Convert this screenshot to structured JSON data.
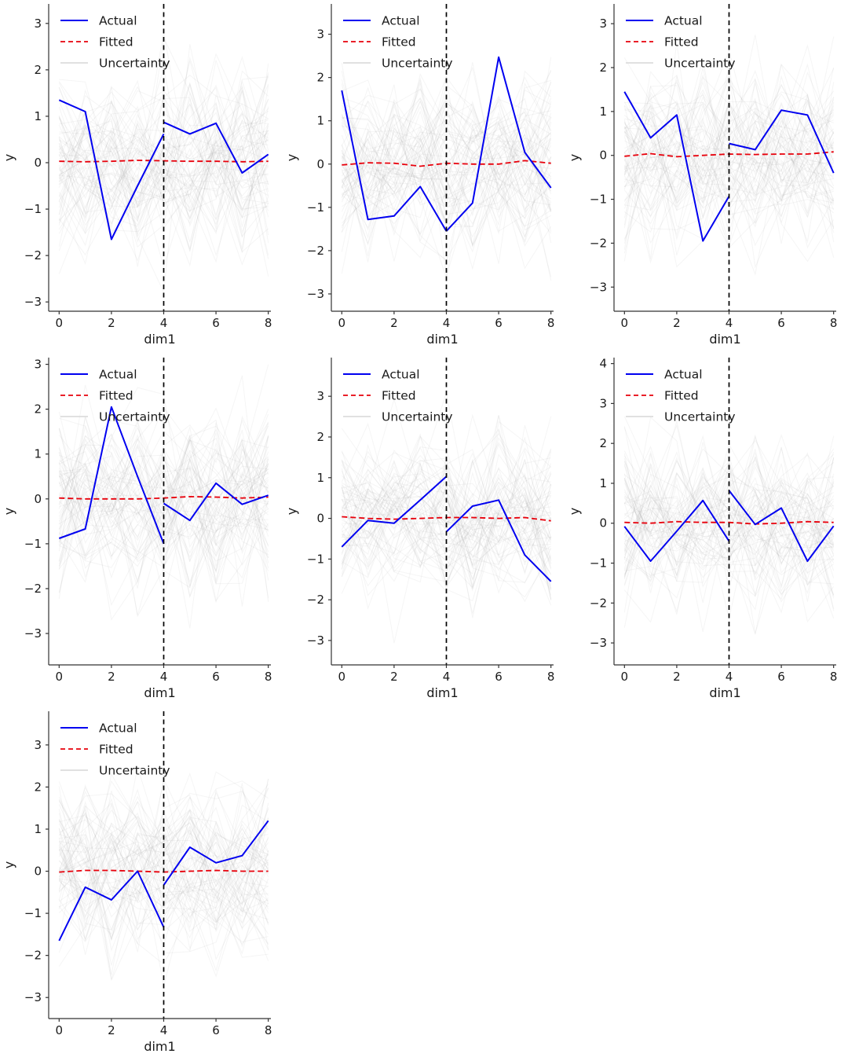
{
  "figure": {
    "xlabel": "dim1",
    "ylabel": "y",
    "legend": [
      {
        "label": "Actual",
        "style": "solid",
        "color_key": "actual"
      },
      {
        "label": "Fitted",
        "style": "dashed",
        "color_key": "fitted"
      },
      {
        "label": "Uncertainty",
        "style": "solid",
        "color_key": "uncertainty_legend"
      }
    ],
    "colors": {
      "actual": "#0000f0",
      "fitted": "#e8000b",
      "uncertainty": "#999999",
      "uncertainty_legend": "#d9d9d9",
      "vline": "#000000",
      "axis": "#333333",
      "text": "#1a1a1a"
    }
  },
  "chart_data": [
    {
      "id": 1,
      "type": "line",
      "xticks": [
        0,
        2,
        4,
        6,
        8
      ],
      "yticks": [
        3,
        2,
        1,
        0,
        -1,
        -2,
        -3
      ],
      "ylim": [
        -3.2,
        3.42
      ],
      "vline_x": 4,
      "actual_context": {
        "x": [
          0,
          1,
          2,
          3,
          4
        ],
        "y": [
          1.35,
          1.1,
          -1.65,
          -0.5,
          0.62
        ]
      },
      "actual_forecast": {
        "x": [
          4,
          5,
          6,
          7,
          8
        ],
        "y": [
          0.87,
          0.62,
          0.85,
          -0.22,
          0.18
        ]
      },
      "fitted": {
        "x": [
          0,
          1,
          2,
          3,
          4,
          5,
          6,
          7,
          8
        ],
        "y": [
          0.03,
          0.02,
          0.03,
          0.05,
          0.04,
          0.03,
          0.03,
          0.02,
          0.03
        ]
      },
      "uncertainty": {
        "n_lines": 70,
        "seed": 101
      }
    },
    {
      "id": 2,
      "type": "line",
      "xticks": [
        0,
        2,
        4,
        6,
        8
      ],
      "yticks": [
        3,
        2,
        1,
        0,
        -1,
        -2,
        -3
      ],
      "ylim": [
        -3.4,
        3.7
      ],
      "vline_x": 4,
      "actual_context": {
        "x": [
          0,
          1,
          2,
          3,
          4
        ],
        "y": [
          1.7,
          -1.28,
          -1.2,
          -0.52,
          -1.55
        ]
      },
      "actual_forecast": {
        "x": [
          4,
          5,
          6,
          7,
          8
        ],
        "y": [
          -1.55,
          -0.9,
          2.47,
          0.27,
          -0.55
        ]
      },
      "fitted": {
        "x": [
          0,
          1,
          2,
          3,
          4,
          5,
          6,
          7,
          8
        ],
        "y": [
          -0.02,
          0.03,
          0.02,
          -0.05,
          0.02,
          0.0,
          0.0,
          0.08,
          0.02
        ]
      },
      "uncertainty": {
        "n_lines": 70,
        "seed": 102
      }
    },
    {
      "id": 3,
      "type": "line",
      "xticks": [
        0,
        2,
        4,
        6,
        8
      ],
      "yticks": [
        3,
        2,
        1,
        0,
        -1,
        -2,
        -3
      ],
      "ylim": [
        -3.55,
        3.45
      ],
      "vline_x": 4,
      "actual_context": {
        "x": [
          0,
          1,
          2,
          3,
          4
        ],
        "y": [
          1.45,
          0.4,
          0.92,
          -1.95,
          -0.93
        ]
      },
      "actual_forecast": {
        "x": [
          4,
          5,
          6,
          7,
          8
        ],
        "y": [
          0.27,
          0.13,
          1.03,
          0.92,
          -0.4
        ]
      },
      "fitted": {
        "x": [
          0,
          1,
          2,
          3,
          4,
          5,
          6,
          7,
          8
        ],
        "y": [
          -0.02,
          0.04,
          -0.03,
          0.0,
          0.03,
          0.02,
          0.03,
          0.03,
          0.08
        ]
      },
      "uncertainty": {
        "n_lines": 70,
        "seed": 103
      }
    },
    {
      "id": 4,
      "type": "line",
      "xticks": [
        0,
        2,
        4,
        6,
        8
      ],
      "yticks": [
        3,
        2,
        1,
        0,
        -1,
        -2,
        -3
      ],
      "ylim": [
        -3.7,
        3.15
      ],
      "vline_x": 4,
      "actual_context": {
        "x": [
          0,
          1,
          2,
          3,
          4
        ],
        "y": [
          -0.88,
          -0.67,
          2.05,
          0.5,
          -1.0
        ]
      },
      "actual_forecast": {
        "x": [
          4,
          5,
          6,
          7,
          8
        ],
        "y": [
          -0.1,
          -0.48,
          0.35,
          -0.12,
          0.08
        ]
      },
      "fitted": {
        "x": [
          0,
          1,
          2,
          3,
          4,
          5,
          6,
          7,
          8
        ],
        "y": [
          0.02,
          0.0,
          0.0,
          0.0,
          0.02,
          0.05,
          0.04,
          0.02,
          0.04
        ]
      },
      "uncertainty": {
        "n_lines": 70,
        "seed": 104
      }
    },
    {
      "id": 5,
      "type": "line",
      "xticks": [
        0,
        2,
        4,
        6,
        8
      ],
      "yticks": [
        3,
        2,
        1,
        0,
        -1,
        -2,
        -3
      ],
      "ylim": [
        -3.6,
        3.95
      ],
      "vline_x": 4,
      "actual_context": {
        "x": [
          0,
          1,
          2,
          3,
          4
        ],
        "y": [
          -0.7,
          -0.05,
          -0.12,
          0.45,
          1.03
        ]
      },
      "actual_forecast": {
        "x": [
          4,
          5,
          6,
          7,
          8
        ],
        "y": [
          -0.33,
          0.3,
          0.45,
          -0.9,
          -1.55
        ]
      },
      "fitted": {
        "x": [
          0,
          1,
          2,
          3,
          4,
          5,
          6,
          7,
          8
        ],
        "y": [
          0.04,
          0.0,
          -0.02,
          0.0,
          0.02,
          0.02,
          0.0,
          0.02,
          -0.06
        ]
      },
      "uncertainty": {
        "n_lines": 70,
        "seed": 105
      }
    },
    {
      "id": 6,
      "type": "line",
      "xticks": [
        0,
        2,
        4,
        6,
        8
      ],
      "yticks": [
        4,
        3,
        2,
        1,
        0,
        -1,
        -2,
        -3
      ],
      "ylim": [
        -3.55,
        4.15
      ],
      "vline_x": 4,
      "actual_context": {
        "x": [
          0,
          1,
          2,
          3,
          4
        ],
        "y": [
          -0.08,
          -0.95,
          -0.2,
          0.57,
          -0.45
        ]
      },
      "actual_forecast": {
        "x": [
          4,
          5,
          6,
          7,
          8
        ],
        "y": [
          0.82,
          -0.03,
          0.38,
          -0.95,
          -0.07
        ]
      },
      "fitted": {
        "x": [
          0,
          1,
          2,
          3,
          4,
          5,
          6,
          7,
          8
        ],
        "y": [
          0.02,
          0.0,
          0.04,
          0.02,
          0.02,
          -0.02,
          0.0,
          0.04,
          0.02
        ]
      },
      "uncertainty": {
        "n_lines": 70,
        "seed": 106
      }
    },
    {
      "id": 7,
      "type": "line",
      "xticks": [
        0,
        2,
        4,
        6,
        8
      ],
      "yticks": [
        3,
        2,
        1,
        0,
        -1,
        -2,
        -3
      ],
      "ylim": [
        -3.5,
        3.8
      ],
      "vline_x": 4,
      "actual_context": {
        "x": [
          0,
          1,
          2,
          3,
          4
        ],
        "y": [
          -1.65,
          -0.38,
          -0.68,
          0.0,
          -1.33
        ]
      },
      "actual_forecast": {
        "x": [
          4,
          5,
          6,
          7,
          8
        ],
        "y": [
          -0.33,
          0.57,
          0.2,
          0.37,
          1.2
        ]
      },
      "fitted": {
        "x": [
          0,
          1,
          2,
          3,
          4,
          5,
          6,
          7,
          8
        ],
        "y": [
          -0.02,
          0.02,
          0.02,
          0.0,
          -0.02,
          0.0,
          0.02,
          0.0,
          0.0
        ]
      },
      "uncertainty": {
        "n_lines": 70,
        "seed": 107
      }
    }
  ]
}
